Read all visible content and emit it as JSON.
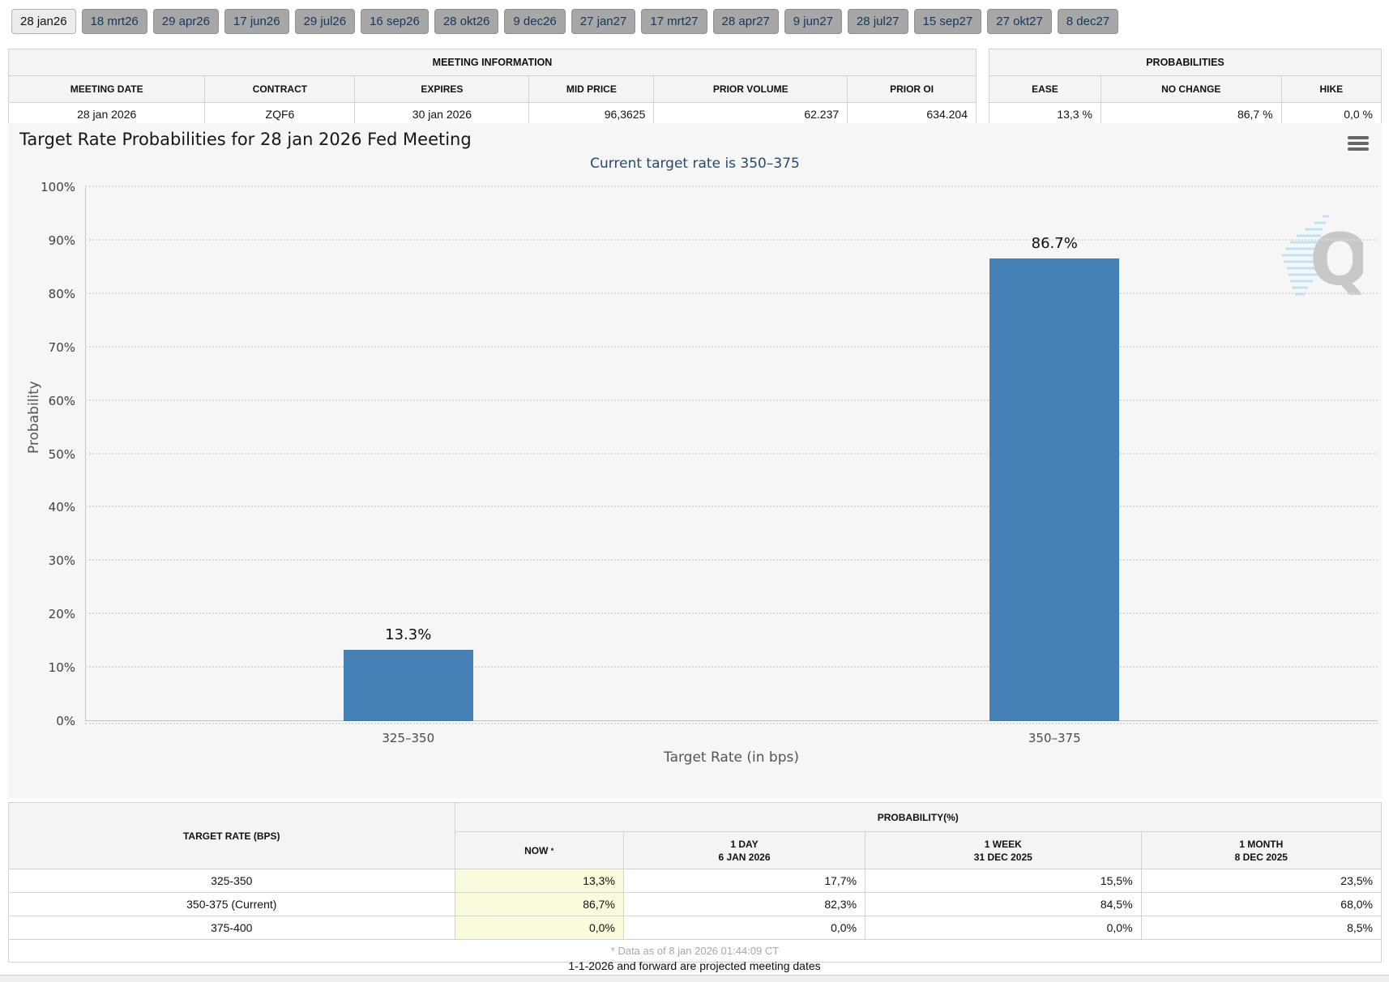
{
  "tabs": {
    "selected": "28 jan26",
    "items": [
      "28 jan26",
      "18 mrt26",
      "29 apr26",
      "17 jun26",
      "29 jul26",
      "16 sep26",
      "28 okt26",
      "9 dec26",
      "27 jan27",
      "17 mrt27",
      "28 apr27",
      "9 jun27",
      "28 jul27",
      "15 sep27",
      "27 okt27",
      "8 dec27"
    ]
  },
  "meeting_info": {
    "title": "MEETING INFORMATION",
    "columns": [
      "MEETING DATE",
      "CONTRACT",
      "EXPIRES",
      "MID PRICE",
      "PRIOR VOLUME",
      "PRIOR OI"
    ],
    "values": [
      "28 jan 2026",
      "ZQF6",
      "30 jan 2026",
      "96,3625",
      "62.237",
      "634.204"
    ]
  },
  "probabilities": {
    "title": "PROBABILITIES",
    "columns": [
      "EASE",
      "NO CHANGE",
      "HIKE"
    ],
    "values": [
      "13,3 %",
      "86,7 %",
      "0,0 %"
    ]
  },
  "chart_data": {
    "type": "bar",
    "title": "Target Rate Probabilities for 28 jan 2026 Fed Meeting",
    "subtitle": "Current target rate is 350–375",
    "categories": [
      "325–350",
      "350–375"
    ],
    "values": [
      13.3,
      86.7
    ],
    "bar_labels": [
      "13.3%",
      "86.7%"
    ],
    "xlabel": "Target Rate (in bps)",
    "ylabel": "Probability",
    "ylim": [
      0,
      100
    ],
    "y_tick_step": 10,
    "y_tick_labels": [
      "0%",
      "10%",
      "20%",
      "30%",
      "40%",
      "50%",
      "60%",
      "70%",
      "80%",
      "90%",
      "100%"
    ],
    "grid": "dotted-horizontal",
    "legend": "none",
    "bar_color": "#4581B6",
    "watermark_letter": "Q"
  },
  "prob_table": {
    "rate_header": "TARGET RATE (BPS)",
    "group_header": "PROBABILITY(%)",
    "now_label": "NOW",
    "now_sup": "*",
    "period_columns": [
      {
        "line1": "1 DAY",
        "line2": "6 JAN 2026"
      },
      {
        "line1": "1 WEEK",
        "line2": "31 DEC 2025"
      },
      {
        "line1": "1 MONTH",
        "line2": "8 DEC 2025"
      }
    ],
    "rows": [
      {
        "rate": "325-350",
        "now": "13,3%",
        "values": [
          "17,7%",
          "15,5%",
          "23,5%"
        ]
      },
      {
        "rate": "350-375 (Current)",
        "now": "86,7%",
        "values": [
          "82,3%",
          "84,5%",
          "68,0%"
        ]
      },
      {
        "rate": "375-400",
        "now": "0,0%",
        "values": [
          "0,0%",
          "0,0%",
          "8,5%"
        ]
      }
    ],
    "footnote": "* Data as of 8 jan 2026 01:44:09 CT"
  },
  "footer_note": "1-1-2026 and forward are projected meeting dates"
}
